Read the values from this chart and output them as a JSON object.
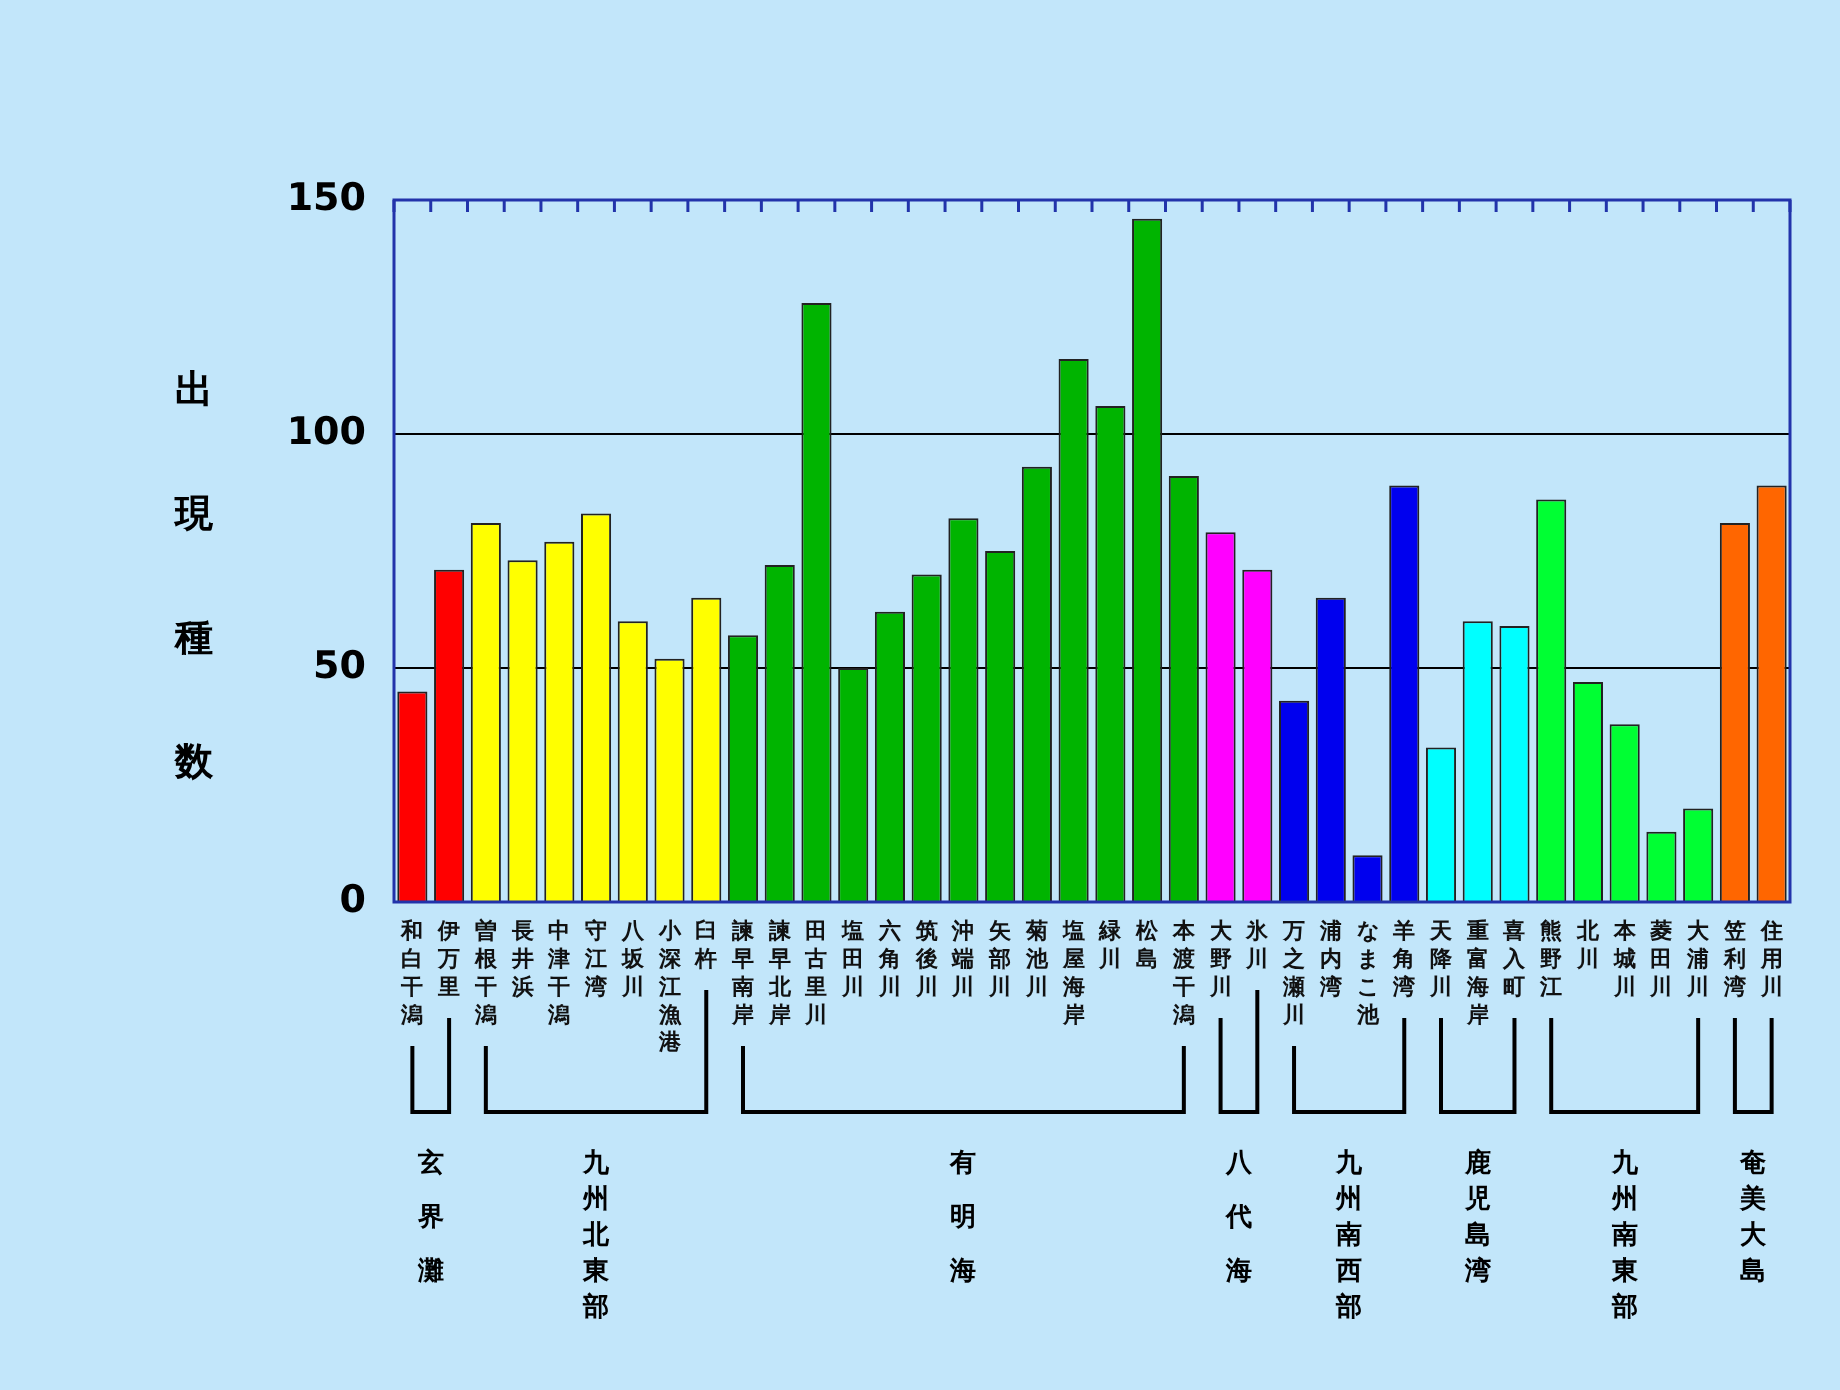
{
  "chart_data": {
    "type": "bar",
    "ylabel": "出現種数",
    "categories": [
      "和白干潟",
      "伊万里",
      "曽根干潟",
      "長井浜",
      "中津干潟",
      "守江湾",
      "八坂川",
      "小深江漁港",
      "臼杵",
      "諫早南岸",
      "諫早北岸",
      "田古里川",
      "塩田川",
      "六角川",
      "筑後川",
      "沖端川",
      "矢部川",
      "菊池川",
      "塩屋海岸",
      "緑川",
      "松島",
      "本渡干潟",
      "大野川",
      "氷川",
      "万之瀬川",
      "浦内湾",
      "なまこ池",
      "羊角湾",
      "天降川",
      "重富海岸",
      "喜入町",
      "熊野江",
      "北川",
      "本城川",
      "菱田川",
      "大浦川",
      "笠利湾",
      "住用川"
    ],
    "values": [
      45,
      71,
      81,
      73,
      77,
      83,
      60,
      52,
      65,
      57,
      72,
      128,
      50,
      62,
      70,
      82,
      75,
      93,
      116,
      106,
      146,
      91,
      79,
      71,
      43,
      65,
      10,
      89,
      33,
      60,
      59,
      86,
      47,
      38,
      15,
      20,
      81,
      89
    ],
    "colors": [
      "#ff0000",
      "#ff0000",
      "#ffff00",
      "#ffff00",
      "#ffff00",
      "#ffff00",
      "#ffff00",
      "#ffff00",
      "#ffff00",
      "#00b400",
      "#00b400",
      "#00b400",
      "#00b400",
      "#00b400",
      "#00b400",
      "#00b400",
      "#00b400",
      "#00b400",
      "#00b400",
      "#00b400",
      "#00b400",
      "#00b400",
      "#ff00ff",
      "#ff00ff",
      "#0000ee",
      "#0000ee",
      "#0000ee",
      "#0000ee",
      "#00ffff",
      "#00ffff",
      "#00ffff",
      "#00ff33",
      "#00ff33",
      "#00ff33",
      "#00ff33",
      "#00ff33",
      "#ff6600",
      "#ff6600"
    ],
    "ylim": [
      0,
      150
    ],
    "yticks": [
      0,
      50,
      100,
      150
    ],
    "grid": "y",
    "legend": false,
    "annotations": [
      "玄界灘",
      "九州北東部",
      "有明海",
      "八代海",
      "九州南西部",
      "鹿児島湾",
      "九州南東部",
      "奄美大島"
    ]
  }
}
